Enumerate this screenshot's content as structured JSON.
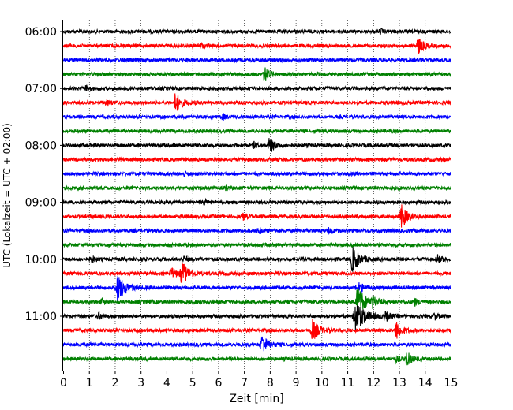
{
  "chart_data": {
    "type": "line",
    "title": "",
    "xlabel": "Zeit  [min]",
    "ylabel": "UTC (Lokalzeit = UTC + 02:00)",
    "xlim": [
      0,
      15
    ],
    "x_ticks": [
      0,
      1,
      2,
      3,
      4,
      5,
      6,
      7,
      8,
      9,
      10,
      11,
      12,
      13,
      14,
      15
    ],
    "y_tick_labels": [
      "06:00",
      "07:00",
      "08:00",
      "09:00",
      "10:00",
      "11:00"
    ],
    "grid_x": true,
    "series_colors": [
      "#000000",
      "#ff0000",
      "#0000ff",
      "#008000"
    ],
    "traces": [
      {
        "start": "06:00",
        "color": "#000000",
        "events": [
          {
            "t": 12.3,
            "amp": 0.25
          }
        ]
      },
      {
        "start": "06:15",
        "color": "#ff0000",
        "events": [
          {
            "t": 13.75,
            "amp": 0.9
          },
          {
            "t": 5.3,
            "amp": 0.3
          }
        ]
      },
      {
        "start": "06:30",
        "color": "#0000ff",
        "events": []
      },
      {
        "start": "06:45",
        "color": "#008000",
        "events": [
          {
            "t": 7.8,
            "amp": 0.85
          }
        ]
      },
      {
        "start": "07:00",
        "color": "#000000",
        "events": [
          {
            "t": 0.9,
            "amp": 0.3
          }
        ]
      },
      {
        "start": "07:15",
        "color": "#ff0000",
        "events": [
          {
            "t": 4.35,
            "amp": 1.1
          },
          {
            "t": 1.7,
            "amp": 0.35
          }
        ]
      },
      {
        "start": "07:30",
        "color": "#0000ff",
        "events": [
          {
            "t": 6.2,
            "amp": 0.3
          }
        ]
      },
      {
        "start": "07:45",
        "color": "#008000",
        "events": []
      },
      {
        "start": "08:00",
        "color": "#000000",
        "events": [
          {
            "t": 8.0,
            "amp": 0.85
          },
          {
            "t": 7.4,
            "amp": 0.3
          }
        ]
      },
      {
        "start": "08:15",
        "color": "#ff0000",
        "events": []
      },
      {
        "start": "08:30",
        "color": "#0000ff",
        "events": [
          {
            "t": 4.7,
            "amp": 0.25
          }
        ]
      },
      {
        "start": "08:45",
        "color": "#008000",
        "events": [
          {
            "t": 6.3,
            "amp": 0.2
          }
        ]
      },
      {
        "start": "09:00",
        "color": "#000000",
        "events": [
          {
            "t": 5.5,
            "amp": 0.2
          }
        ]
      },
      {
        "start": "09:15",
        "color": "#ff0000",
        "events": [
          {
            "t": 13.1,
            "amp": 1.25
          },
          {
            "t": 7.0,
            "amp": 0.35
          }
        ]
      },
      {
        "start": "09:30",
        "color": "#0000ff",
        "events": [
          {
            "t": 10.3,
            "amp": 0.4
          },
          {
            "t": 7.6,
            "amp": 0.3
          }
        ]
      },
      {
        "start": "09:45",
        "color": "#008000",
        "events": []
      },
      {
        "start": "10:00",
        "color": "#000000",
        "events": [
          {
            "t": 11.2,
            "amp": 1.4
          },
          {
            "t": 14.5,
            "amp": 0.45
          },
          {
            "t": 1.1,
            "amp": 0.4
          },
          {
            "t": 4.7,
            "amp": 0.3
          }
        ]
      },
      {
        "start": "10:15",
        "color": "#ff0000",
        "events": [
          {
            "t": 4.6,
            "amp": 1.3
          },
          {
            "t": 4.2,
            "amp": 0.6
          }
        ]
      },
      {
        "start": "10:30",
        "color": "#0000ff",
        "events": [
          {
            "t": 2.1,
            "amp": 1.6
          },
          {
            "t": 11.4,
            "amp": 0.8
          }
        ]
      },
      {
        "start": "10:45",
        "color": "#008000",
        "events": [
          {
            "t": 11.4,
            "amp": 1.7
          },
          {
            "t": 12.0,
            "amp": 0.5
          },
          {
            "t": 13.6,
            "amp": 0.4
          },
          {
            "t": 1.5,
            "amp": 0.25
          }
        ]
      },
      {
        "start": "11:00",
        "color": "#000000",
        "events": [
          {
            "t": 11.3,
            "amp": 1.9
          },
          {
            "t": 12.5,
            "amp": 0.5
          },
          {
            "t": 1.4,
            "amp": 0.35
          },
          {
            "t": 14.4,
            "amp": 0.3
          }
        ]
      },
      {
        "start": "11:15",
        "color": "#ff0000",
        "events": [
          {
            "t": 9.65,
            "amp": 1.2
          },
          {
            "t": 12.9,
            "amp": 0.95
          }
        ]
      },
      {
        "start": "11:30",
        "color": "#0000ff",
        "events": [
          {
            "t": 7.7,
            "amp": 1.1
          }
        ]
      },
      {
        "start": "11:45",
        "color": "#008000",
        "events": [
          {
            "t": 13.3,
            "amp": 0.8
          },
          {
            "t": 12.9,
            "amp": 0.3
          }
        ]
      }
    ]
  }
}
